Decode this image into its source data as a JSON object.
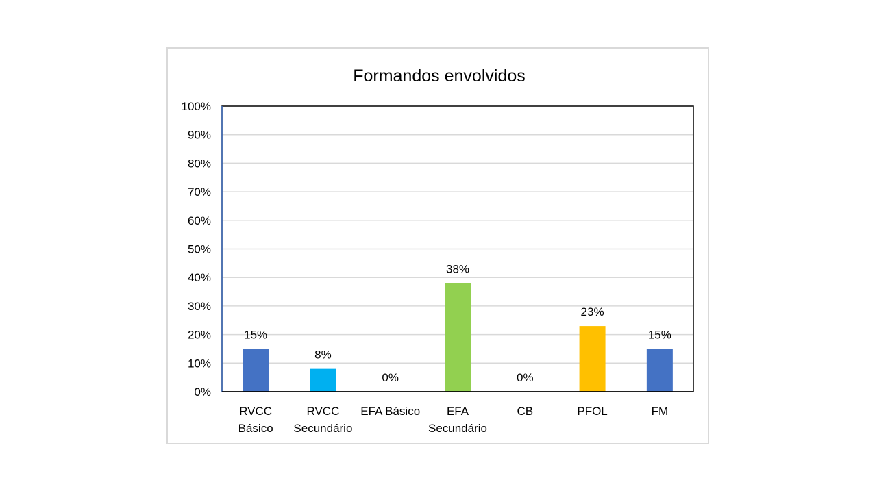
{
  "chart_data": {
    "type": "bar",
    "title": "Formandos envolvidos",
    "categories": [
      [
        "RVCC",
        "Básico"
      ],
      [
        "RVCC",
        "Secundário"
      ],
      [
        "EFA Básico"
      ],
      [
        "EFA",
        "Secundário"
      ],
      [
        "CB"
      ],
      [
        "PFOL"
      ],
      [
        "FM"
      ]
    ],
    "values": [
      15,
      8,
      0,
      38,
      0,
      23,
      15
    ],
    "value_labels": [
      "15%",
      "8%",
      "0%",
      "38%",
      "0%",
      "23%",
      "15%"
    ],
    "colors": [
      "#4472C4",
      "#00B0F0",
      "#4472C4",
      "#92D050",
      "#4472C4",
      "#FFC000",
      "#4472C4"
    ],
    "ylim": [
      0,
      100
    ],
    "yticks": [
      0,
      10,
      20,
      30,
      40,
      50,
      60,
      70,
      80,
      90,
      100
    ],
    "ytick_labels": [
      "0%",
      "10%",
      "20%",
      "30%",
      "40%",
      "50%",
      "60%",
      "70%",
      "80%",
      "90%",
      "100%"
    ],
    "grid": true,
    "legend": "none"
  }
}
